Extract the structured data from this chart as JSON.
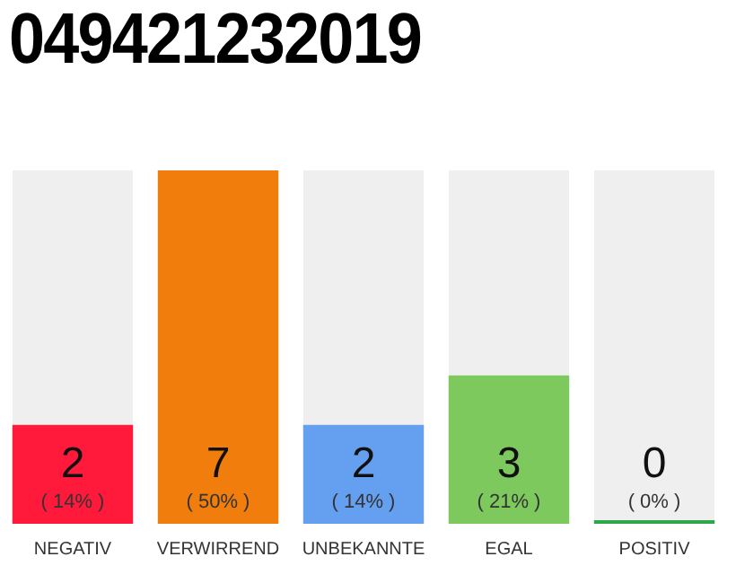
{
  "chart_data": {
    "type": "bar",
    "title": "049421232019",
    "categories": [
      "NEGATIV",
      "VERWIRREND",
      "UNBEKANNTE",
      "EGAL",
      "POSITIV"
    ],
    "values": [
      14,
      50,
      14,
      21,
      0
    ],
    "colors": [
      "#ff1a3c",
      "#f07d0c",
      "#659ff0",
      "#7dc95e",
      "#2ea84a"
    ],
    "value_labels": [
      "( 14% )",
      "( 50% )",
      "( 14% )",
      "( 21% )",
      "( 0% )"
    ],
    "annotations": [
      "2",
      "7",
      "2",
      "3",
      "0"
    ],
    "grid": false,
    "legend": false
  }
}
